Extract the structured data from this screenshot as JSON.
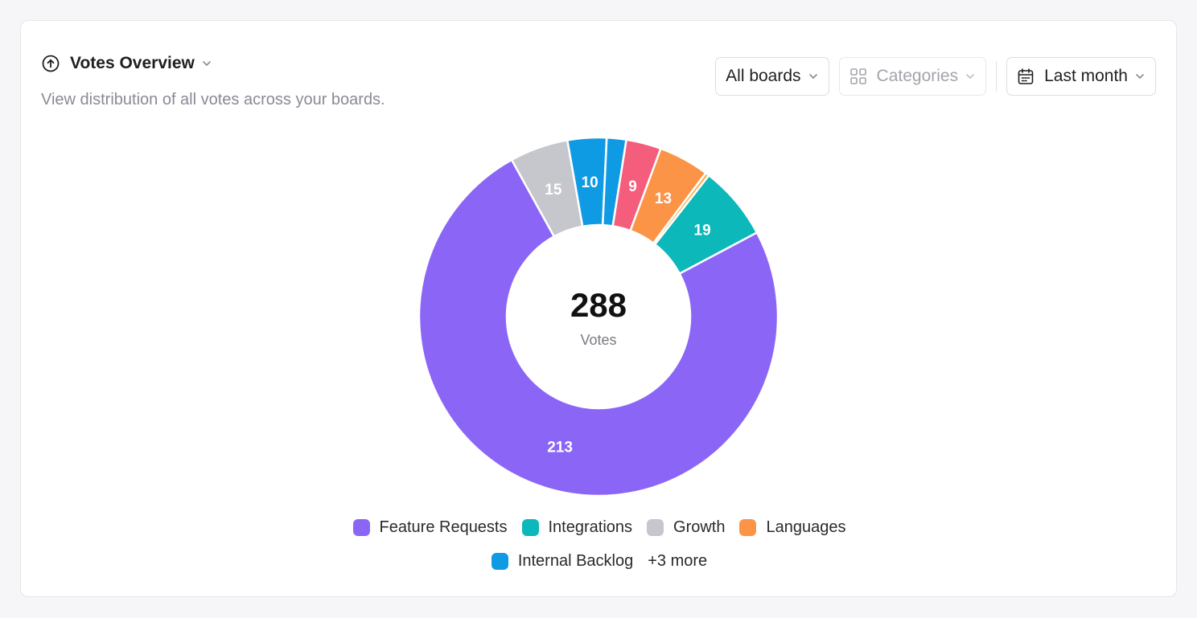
{
  "card": {
    "title": "Votes Overview",
    "subtitle": "View distribution of all votes across your boards."
  },
  "controls": {
    "boards_label": "All boards",
    "categories_label": "Categories",
    "period_label": "Last month"
  },
  "icons": {
    "title": "circle-arrow-up-icon",
    "categories": "grid-icon",
    "period": "calendar-icon",
    "dropdown": "chevron-down-icon"
  },
  "chart_data": {
    "type": "pie",
    "variant": "donut",
    "total": 288,
    "total_label": "Votes",
    "slices": [
      {
        "label": "Feature Requests",
        "value": 213,
        "color": "#8b66f6"
      },
      {
        "label": "Growth",
        "value": 15,
        "color": "#c5c7cc"
      },
      {
        "label": "Internal Backlog",
        "value": 10,
        "color": "#0f9be3"
      },
      {
        "value": 5,
        "color": "#0f9be3"
      },
      {
        "value": 9,
        "color": "#f45d7b"
      },
      {
        "label": "Languages",
        "value": 13,
        "color": "#fc9448"
      },
      {
        "value": 1,
        "color": "#f9b24a"
      },
      {
        "label": "Integrations",
        "value": 19,
        "color": "#0db8ba"
      }
    ],
    "slice_labels": [
      "213",
      "15",
      "10",
      "",
      "9",
      "13",
      "",
      "19"
    ]
  },
  "legend": {
    "items": [
      {
        "label": "Feature Requests",
        "color": "#8b66f6"
      },
      {
        "label": "Integrations",
        "color": "#0db8ba"
      },
      {
        "label": "Growth",
        "color": "#c5c7cc"
      },
      {
        "label": "Languages",
        "color": "#fc9448"
      },
      {
        "label": "Internal Backlog",
        "color": "#0f9be3"
      }
    ],
    "more_label": "+3 more"
  }
}
